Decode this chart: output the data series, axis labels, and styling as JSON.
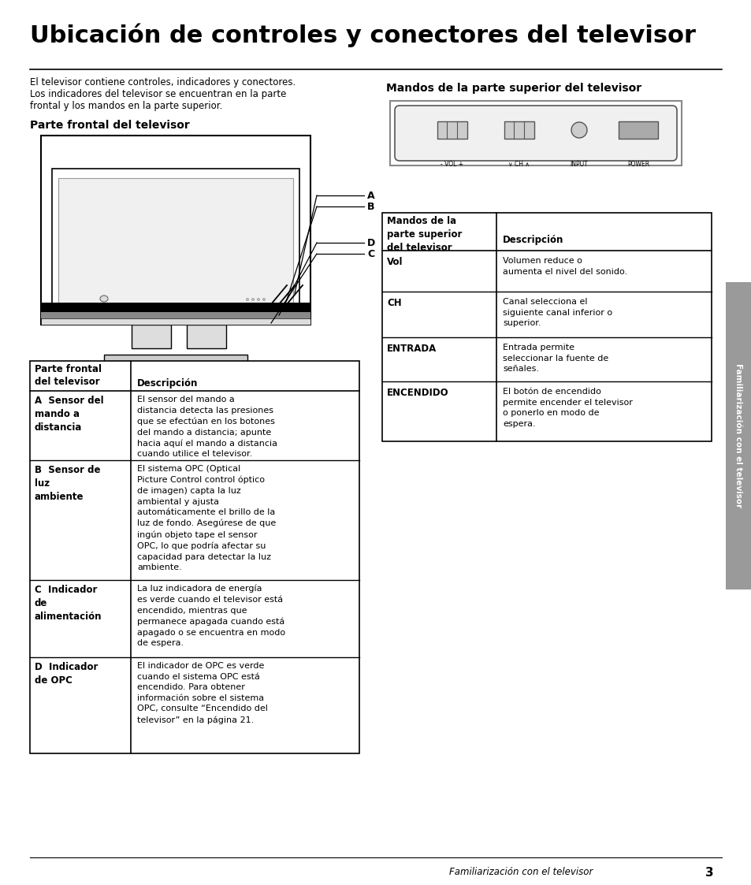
{
  "title": "Ubicación de controles y conectores del televisor",
  "bg_color": "#ffffff",
  "intro_text_1": "El televisor contiene controles, indicadores y conectores.",
  "intro_text_2": "Los indicadores del televisor se encuentran en la parte",
  "intro_text_3": "frontal y los mandos en la parte superior.",
  "left_section_title": "Parte frontal del televisor",
  "right_section_title": "Mandos de la parte superior del televisor",
  "left_table_header_col1": "Parte frontal\ndel televisor",
  "left_table_header_col2": "Descripción",
  "left_table_rows": [
    {
      "col1": "A  Sensor del\nmando a\ndistancia",
      "col2_pre": "El ",
      "col2_bold": "sensor del mando a\ndistancia",
      "col2_rest": " detecta las presiones\nque se efectúan en los botones\ndel mando a distancia; apunte\nhacia aquí el mando a distancia\ncuando utilice el televisor."
    },
    {
      "col1": "B  Sensor de\nluz\nambiente",
      "col2_pre": "El ",
      "col2_bold": "sistema OPC (Optical\nPicture Control",
      "col2_rest": " control óptico\nde imagen) capta la luz\nambiental y ajusta\nautomáticamente el brillo de la\nluz de fondo. Asegúrese de que\ningún objeto tape el sensor\nOPC, lo que podría afectar su\ncapacidad para detectar la luz\nambiente."
    },
    {
      "col1": "C  Indicador\nde\nalimentación",
      "col2_pre": "La ",
      "col2_bold": "luz indicadora de energía",
      "col2_rest": "\nes verde cuando el televisor está\nencendido, mientras que\npermanece apagada cuando está\napagado o se encuentra en modo\nde espera."
    },
    {
      "col1": "D  Indicador\nde OPC",
      "col2_pre": "El ",
      "col2_bold": "indicador de OPC",
      "col2_rest": " es verde\ncuando el sistema OPC está\nencendido. Para obtener\ninformación sobre el sistema\nOPC, consulte “Encendido del\ntelevisor” en la página 21."
    }
  ],
  "right_table_header_col1": "Mandos de la\nparte superior\ndel televisor",
  "right_table_header_col2": "Descripción",
  "right_table_rows": [
    {
      "col1": "Vol",
      "col2_pre": "",
      "col2_bold": "Volumen",
      "col2_rest": " reduce o\naumenta el nivel del sonido."
    },
    {
      "col1": "CH",
      "col2_pre": "",
      "col2_bold": "Canal",
      "col2_rest": " selecciona el\nsiguiente canal inferior o\nsuperior."
    },
    {
      "col1": "ENTRADA",
      "col2_pre": "",
      "col2_bold": "Entrada",
      "col2_rest": " permite\nseleccionar la fuente de\nseñales."
    },
    {
      "col1": "ENCENDIDO",
      "col2_pre": "El botón de ",
      "col2_bold": "encendido",
      "col2_rest": "\npermite encender el televisor\no ponerlo en modo de\nespera."
    }
  ],
  "footer_text": "Familiarización con el televisor",
  "footer_page": "3",
  "sidebar_text": "Familiarización con el televisor",
  "sidebar_color": "#9a9a9a"
}
